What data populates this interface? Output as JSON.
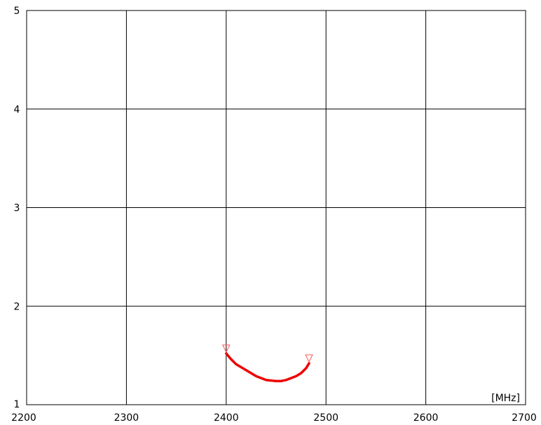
{
  "chart_data": {
    "type": "line",
    "title": "",
    "xlabel": "",
    "ylabel": "",
    "x_unit_label": "[MHz]",
    "xlim": [
      2200,
      2700
    ],
    "ylim": [
      1,
      5
    ],
    "x_ticks": [
      "2200",
      "2300",
      "2400",
      "2500",
      "2600",
      "2700"
    ],
    "y_ticks": [
      "1",
      "2",
      "3",
      "4",
      "5"
    ],
    "grid": true,
    "legend": "none",
    "series": [
      {
        "color": "#ee0000",
        "x": [
          2400,
          2405,
          2410,
          2415,
          2420,
          2425,
          2430,
          2435,
          2440,
          2445,
          2450,
          2455,
          2460,
          2465,
          2470,
          2475,
          2480,
          2483
        ],
        "y": [
          1.52,
          1.46,
          1.41,
          1.38,
          1.35,
          1.32,
          1.29,
          1.27,
          1.25,
          1.245,
          1.24,
          1.24,
          1.25,
          1.27,
          1.29,
          1.32,
          1.37,
          1.42
        ]
      }
    ],
    "markers": [
      {
        "x": 2400,
        "y": 1.57,
        "shape": "triangle-down",
        "color": "#ff5555"
      },
      {
        "x": 2483,
        "y": 1.47,
        "shape": "triangle-down",
        "color": "#ff5555"
      }
    ]
  }
}
